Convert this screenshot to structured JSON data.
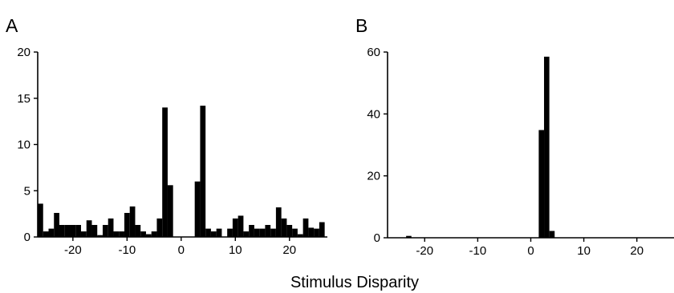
{
  "xlabel": "Stimulus Disparity",
  "chart_data": [
    {
      "type": "bar",
      "panel_label": "A",
      "xlabel": "Stimulus Disparity",
      "ylabel": "",
      "xlim": [
        -26.5,
        27
      ],
      "ylim": [
        0,
        20
      ],
      "x_ticks": [
        -20,
        -10,
        0,
        10,
        20
      ],
      "x_tick_labels": [
        "-20",
        "-10",
        "0",
        "10",
        "20"
      ],
      "y_ticks": [
        0,
        5,
        10,
        15,
        20
      ],
      "y_tick_labels": [
        "0",
        "5",
        "10",
        "15",
        "20"
      ],
      "grid": false,
      "x": [
        -26,
        -25,
        -24,
        -23,
        -22,
        -21,
        -20,
        -19,
        -18,
        -17,
        -16,
        -15,
        -14,
        -13,
        -12,
        -11,
        -10,
        -9,
        -8,
        -7,
        -6,
        -5,
        -4,
        -3,
        -2,
        -1,
        0,
        1,
        2,
        3,
        4,
        5,
        6,
        7,
        8,
        9,
        10,
        11,
        12,
        13,
        14,
        15,
        16,
        17,
        18,
        19,
        20,
        21,
        22,
        23,
        24,
        25,
        26
      ],
      "values": [
        3.6,
        0.6,
        0.9,
        2.6,
        1.3,
        1.3,
        1.3,
        1.3,
        0.6,
        1.8,
        1.3,
        0.2,
        1.3,
        2.0,
        0.6,
        0.6,
        2.6,
        3.3,
        1.3,
        0.6,
        0.3,
        0.6,
        2.0,
        14.0,
        5.6,
        0,
        0,
        0,
        0,
        6.0,
        14.2,
        0.9,
        0.6,
        0.9,
        0,
        0.9,
        2.0,
        2.3,
        0.6,
        1.3,
        0.9,
        0.9,
        1.3,
        0.9,
        3.2,
        2.0,
        1.3,
        0.9,
        0.3,
        2.0,
        1.0,
        0.9,
        1.6
      ]
    },
    {
      "type": "bar",
      "panel_label": "B",
      "xlabel": "Stimulus Disparity",
      "ylabel": "",
      "xlim": [
        -27,
        27
      ],
      "ylim": [
        0,
        60
      ],
      "x_ticks": [
        -20,
        -10,
        0,
        10,
        20
      ],
      "x_tick_labels": [
        "-20",
        "-10",
        "0",
        "10",
        "20"
      ],
      "y_ticks": [
        0,
        20,
        40,
        60
      ],
      "y_tick_labels": [
        "0",
        "20",
        "40",
        "60"
      ],
      "grid": false,
      "x": [
        -23,
        2,
        3,
        4
      ],
      "values": [
        0.6,
        34.8,
        58.5,
        2.2
      ]
    }
  ]
}
